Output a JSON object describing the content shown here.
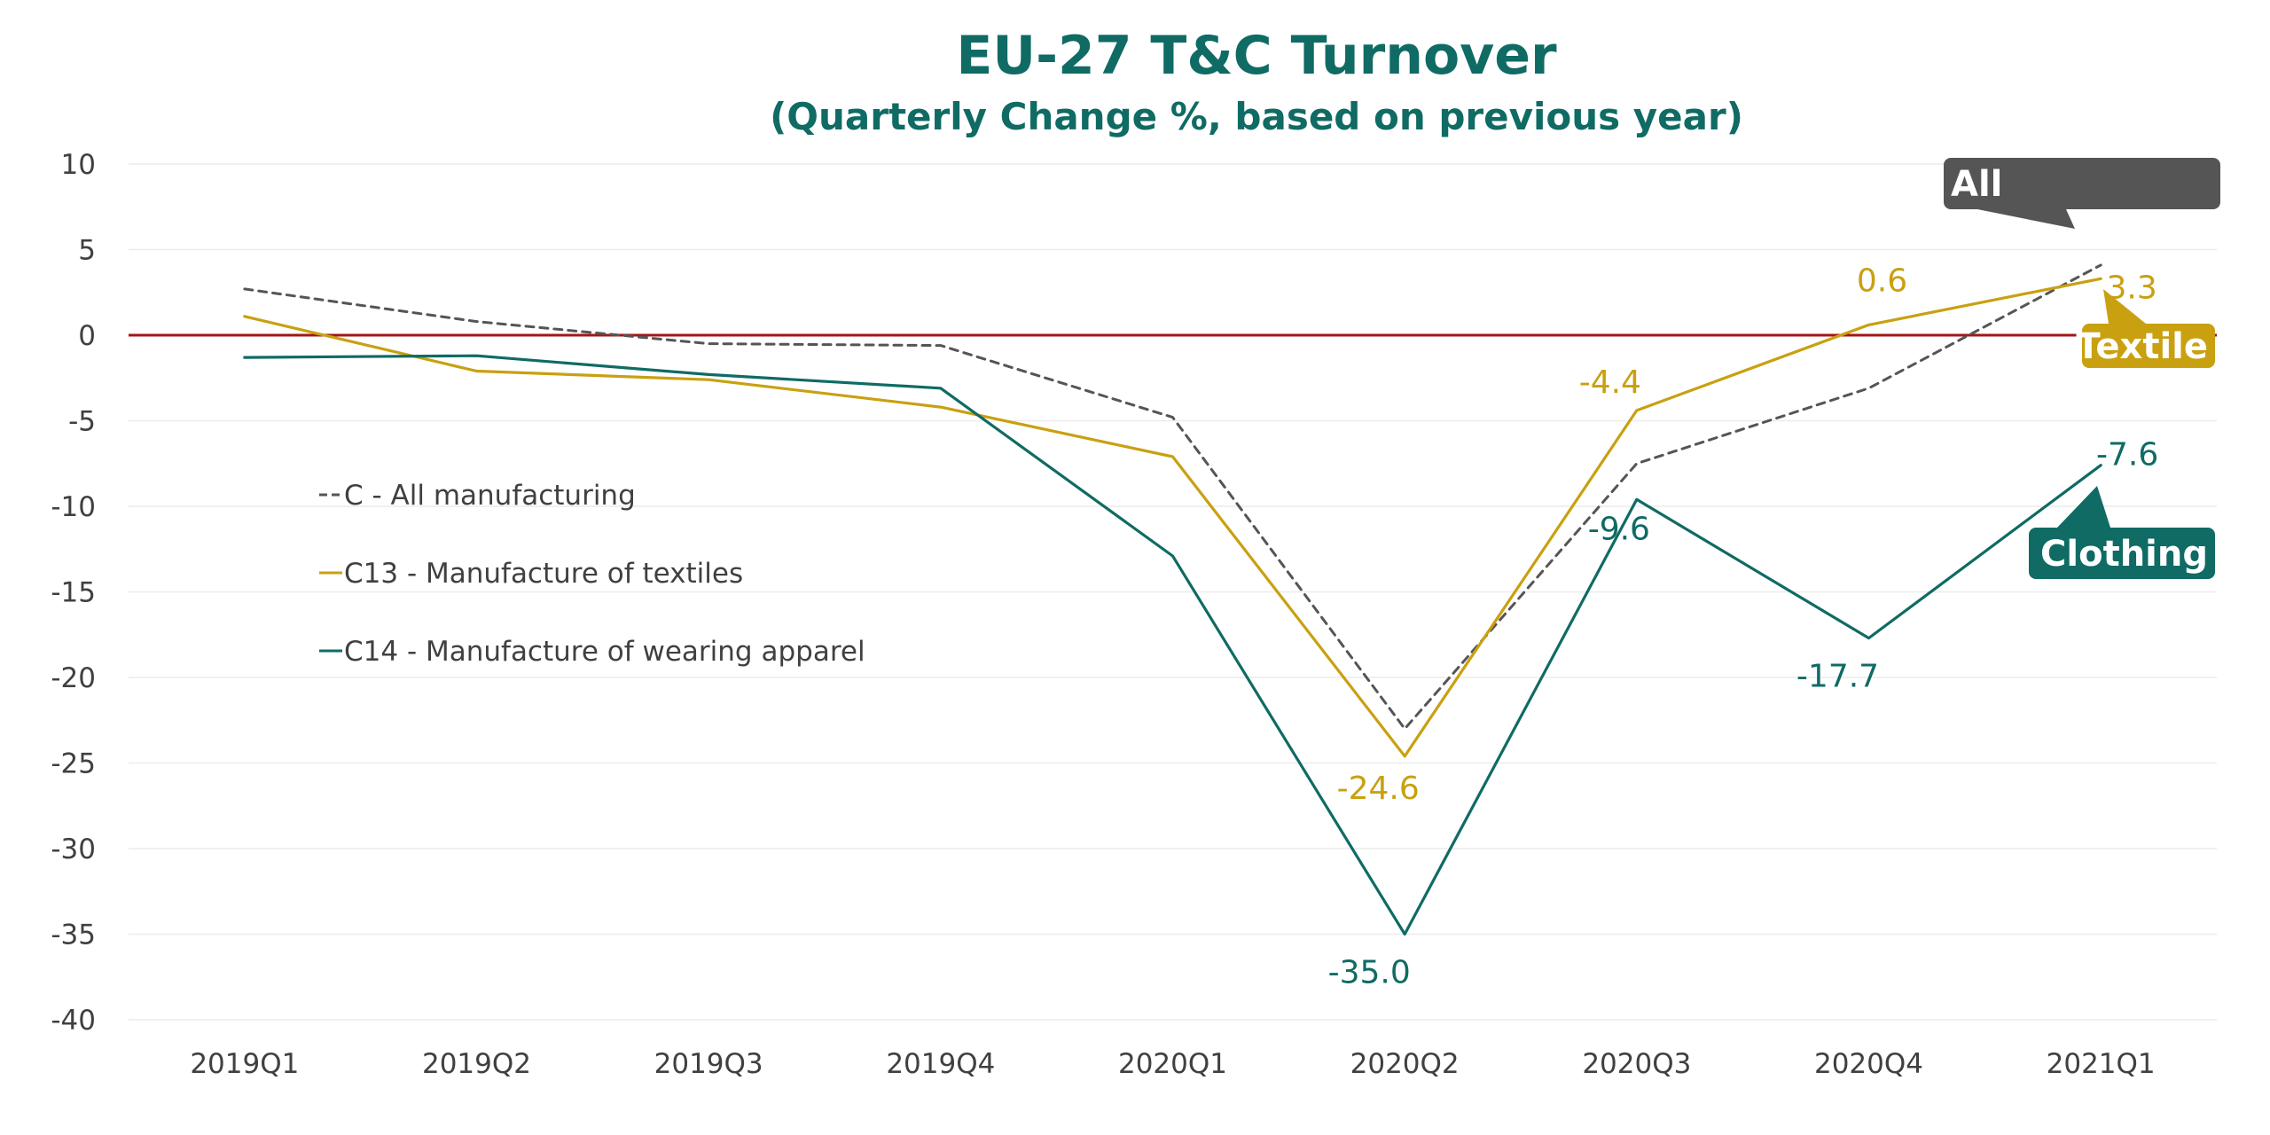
{
  "colors": {
    "title": "#0f6b64",
    "all": "#555555",
    "textiles": "#c9a010",
    "apparel": "#0f6b64",
    "zero_line": "#a31515",
    "grid": "#ececec",
    "axis_text": "#404040"
  },
  "chart_data": {
    "type": "line",
    "title": "EU-27 T&C Turnover",
    "subtitle": "(Quarterly Change %, based on previous year)",
    "categories": [
      "2019Q1",
      "2019Q2",
      "2019Q3",
      "2019Q4",
      "2020Q1",
      "2020Q2",
      "2020Q3",
      "2020Q4",
      "2021Q1"
    ],
    "ylim": [
      -40,
      10
    ],
    "yticks": [
      10,
      5,
      0,
      -5,
      -10,
      -15,
      -20,
      -25,
      -30,
      -35,
      -40
    ],
    "grid": true,
    "legend_position": "left",
    "series": [
      {
        "key": "all",
        "name": "C - All manufacturing",
        "style": "dashed",
        "values": [
          2.7,
          0.8,
          -0.5,
          -0.6,
          -4.8,
          -23.0,
          -7.5,
          -3.1,
          4.1
        ]
      },
      {
        "key": "textiles",
        "name": "C13 - Manufacture of textiles",
        "style": "solid",
        "values": [
          1.1,
          -2.1,
          -2.6,
          -4.2,
          -7.1,
          -24.6,
          -4.4,
          0.6,
          3.3
        ]
      },
      {
        "key": "apparel",
        "name": "C14 - Manufacture of wearing apparel",
        "style": "solid",
        "values": [
          -1.3,
          -1.2,
          -2.3,
          -3.1,
          -12.9,
          -35.0,
          -9.6,
          -17.7,
          -7.6
        ]
      }
    ],
    "data_labels": [
      {
        "series": "textiles",
        "index": 5,
        "text": "-24.6"
      },
      {
        "series": "textiles",
        "index": 6,
        "text": "-4.4"
      },
      {
        "series": "textiles",
        "index": 7,
        "text": "0.6"
      },
      {
        "series": "textiles",
        "index": 8,
        "text": "3.3"
      },
      {
        "series": "apparel",
        "index": 5,
        "text": "-35.0"
      },
      {
        "series": "apparel",
        "index": 6,
        "text": "-9.6"
      },
      {
        "series": "apparel",
        "index": 7,
        "text": "-17.7"
      },
      {
        "series": "apparel",
        "index": 8,
        "text": "-7.6"
      }
    ],
    "callouts": [
      {
        "series": "all",
        "text": "All"
      },
      {
        "series": "textiles",
        "text": "Textile"
      },
      {
        "series": "apparel",
        "text": "Clothing"
      }
    ]
  }
}
